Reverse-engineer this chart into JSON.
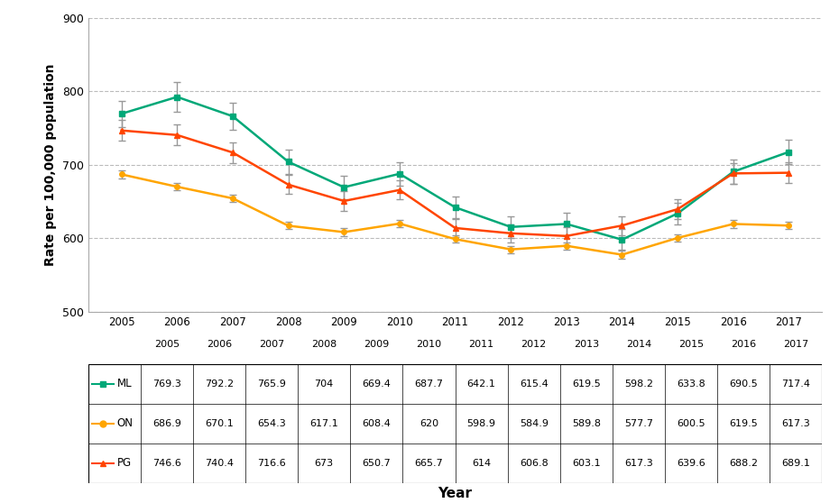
{
  "years": [
    2005,
    2006,
    2007,
    2008,
    2009,
    2010,
    2011,
    2012,
    2013,
    2014,
    2015,
    2016,
    2017
  ],
  "ML": [
    769.3,
    792.2,
    765.9,
    704,
    669.4,
    687.7,
    642.1,
    615.4,
    619.5,
    598.2,
    633.8,
    690.5,
    717.4
  ],
  "ON": [
    686.9,
    670.1,
    654.3,
    617.1,
    608.4,
    620,
    598.9,
    584.9,
    589.8,
    577.7,
    600.5,
    619.5,
    617.3
  ],
  "PG": [
    746.6,
    740.4,
    716.6,
    673,
    650.7,
    665.7,
    614,
    606.8,
    603.1,
    617.3,
    639.6,
    688.2,
    689.1
  ],
  "ML_err": [
    18,
    20,
    18,
    17,
    16,
    16,
    15,
    15,
    15,
    14,
    15,
    16,
    17
  ],
  "ON_err": [
    5,
    5,
    5,
    5,
    5,
    5,
    5,
    5,
    5,
    5,
    5,
    5,
    5
  ],
  "PG_err": [
    14,
    14,
    14,
    13,
    13,
    13,
    12,
    12,
    12,
    13,
    13,
    14,
    14
  ],
  "ML_color": "#00A878",
  "ON_color": "#FFA500",
  "PG_color": "#FF4500",
  "ylabel": "Rate per 100,000 population",
  "xlabel": "Year",
  "ylim": [
    500,
    900
  ],
  "yticks": [
    500,
    600,
    700,
    800,
    900
  ],
  "background_color": "#ffffff",
  "grid_color": "#bbbbbb"
}
